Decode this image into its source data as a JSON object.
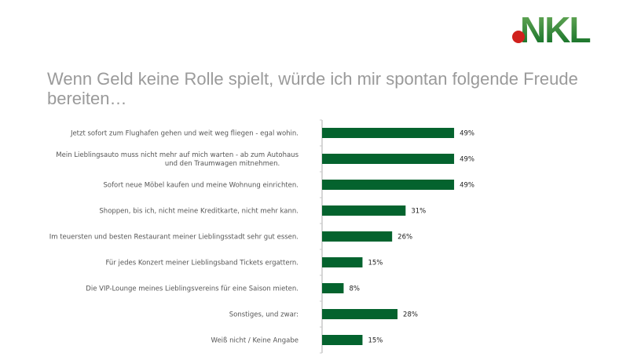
{
  "logo_text": "NKL",
  "chart_data": {
    "type": "bar",
    "orientation": "horizontal",
    "title": "Wenn Geld keine Rolle spielt, würde ich mir spontan folgende Freude bereiten…",
    "categories": [
      [
        "Jetzt sofort zum Flughafen gehen und weit weg fliegen - egal wohin."
      ],
      [
        "Mein Lieblingsauto muss nicht mehr auf mich warten - ab zum Autohaus",
        "und den Traumwagen mitnehmen."
      ],
      [
        "Sofort neue Möbel kaufen und meine Wohnung einrichten."
      ],
      [
        "Shoppen, bis ich, nicht meine Kreditkarte, nicht mehr kann."
      ],
      [
        "Im teuersten und besten Restaurant meiner Lieblingsstadt sehr gut essen."
      ],
      [
        "Für jedes Konzert meiner Lieblingsband Tickets ergattern."
      ],
      [
        "Die VIP-Lounge meines Lieblingsvereins für eine Saison mieten."
      ],
      [
        "Sonstiges, und zwar:"
      ],
      [
        "Weiß nicht / Keine Angabe"
      ]
    ],
    "values": [
      49,
      49,
      49,
      31,
      26,
      15,
      8,
      28,
      15
    ],
    "value_labels": [
      "49%",
      "49%",
      "49%",
      "31%",
      "26%",
      "15%",
      "8%",
      "28%",
      "15%"
    ],
    "unit": "%",
    "xlim": [
      0,
      100
    ],
    "bar_color": "#04632e",
    "grid": false
  }
}
